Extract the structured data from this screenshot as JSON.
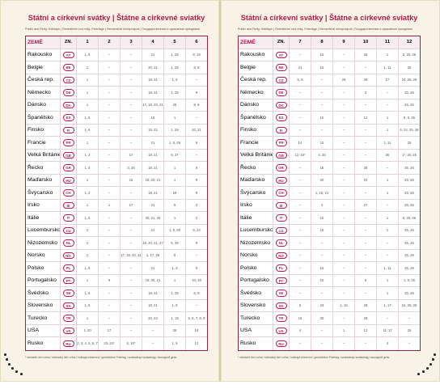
{
  "left_page": {
    "title": "Státní a církevní svátky | Štátne a cirkevné sviatky",
    "subtitle": "Public and Relig. Holidays | Gesetzliche und relig. Feiertage | Nemzetközi ünnepnapok | Государственные и церковные праздники",
    "columns": [
      "ZEMĚ",
      "ZN.",
      "1",
      "2",
      "3",
      "4",
      "5",
      "6"
    ],
    "rows": [
      {
        "country": "Rakousko",
        "code": "AT",
        "cells": [
          "1, 6",
          "–",
          "–",
          "21",
          "1, 29",
          "9, 19"
        ]
      },
      {
        "country": "Belgie",
        "code": "BE",
        "cells": [
          "1",
          "–",
          "–",
          "20, 21",
          "1, 29",
          "8, 9"
        ]
      },
      {
        "country": "Česká rep.",
        "code": "CZ",
        "cells": [
          "1",
          "–",
          "–",
          "18, 21",
          "1, 8",
          "–"
        ]
      },
      {
        "country": "Německo",
        "code": "DE",
        "cells": [
          "1",
          "–",
          "–",
          "18, 21",
          "1, 29",
          "9"
        ]
      },
      {
        "country": "Dánsko",
        "code": "DK",
        "cells": [
          "1",
          "–",
          "–",
          "17, 18, 20, 21",
          "29",
          "8, 9"
        ]
      },
      {
        "country": "Španělsko",
        "code": "ES",
        "cells": [
          "1, 6",
          "–",
          "–",
          "18",
          "1",
          "–"
        ]
      },
      {
        "country": "Finsko",
        "code": "FI",
        "cells": [
          "1, 6",
          "–",
          "–",
          "18, 21",
          "1, 29",
          "20, 21"
        ]
      },
      {
        "country": "Francie",
        "code": "FR",
        "cells": [
          "1",
          "–",
          "–",
          "21",
          "1, 8, 29",
          "9"
        ]
      },
      {
        "country": "Velká Británie",
        "code": "GB",
        "cells": [
          "1, 2",
          "–",
          "17",
          "18, 21",
          "6, 27",
          "–"
        ]
      },
      {
        "country": "Řecko",
        "code": "GR",
        "cells": [
          "1, 6",
          "–",
          "3, 25",
          "18, 21",
          "1",
          "9"
        ]
      },
      {
        "country": "Maďarsko",
        "code": "HU",
        "cells": [
          "1",
          "–",
          "15",
          "18, 20, 21",
          "1",
          "9"
        ]
      },
      {
        "country": "Švýcarsko",
        "code": "CH",
        "cells": [
          "1, 2",
          "–",
          "–",
          "18, 21",
          "29",
          "9"
        ]
      },
      {
        "country": "Irsko",
        "code": "IE",
        "cells": [
          "1",
          "1",
          "17",
          "21",
          "6",
          "3"
        ]
      },
      {
        "country": "Itálie",
        "code": "IT",
        "cells": [
          "1, 6",
          "–",
          "–",
          "20, 21, 25",
          "1",
          "2"
        ]
      },
      {
        "country": "Lucembursko",
        "code": "LU",
        "cells": [
          "1",
          "–",
          "–",
          "21",
          "1, 9, 29",
          "9, 23"
        ]
      },
      {
        "country": "Nizozemsko",
        "code": "NL",
        "cells": [
          "1",
          "–",
          "–",
          "18, 20, 21, 27",
          "5, 29",
          "9"
        ]
      },
      {
        "country": "Norsko",
        "code": "NO",
        "cells": [
          "1",
          "–",
          "17, 18, 20, 21",
          "1, 17, 29",
          "9",
          "–"
        ]
      },
      {
        "country": "Polsko",
        "code": "PL",
        "cells": [
          "1, 6",
          "–",
          "–",
          "21",
          "1, 3",
          "9"
        ]
      },
      {
        "country": "Portugalsko",
        "code": "PT",
        "cells": [
          "1",
          "9",
          "–",
          "18, 25, 21",
          "1",
          "10, 19"
        ]
      },
      {
        "country": "Švédsko",
        "code": "SE",
        "cells": [
          "1, 6",
          "–",
          "–",
          "18, 21",
          "1, 29",
          "6, 9"
        ]
      },
      {
        "country": "Slovensko",
        "code": "SK",
        "cells": [
          "1, 6",
          "–",
          "–",
          "18, 21",
          "1, 8",
          "–"
        ]
      },
      {
        "country": "Turecko",
        "code": "TR",
        "cells": [
          "1",
          "–",
          "–",
          "20, 23",
          "1, 19",
          "5, 6, 7, 8, 9"
        ]
      },
      {
        "country": "USA",
        "code": "US",
        "cells": [
          "1, 20",
          "17",
          "–",
          "–",
          "28",
          "19"
        ]
      },
      {
        "country": "Rusko",
        "code": "RU",
        "cells": [
          "1, 2, 3, 4, 5, 6, 7, 8",
          "23, 24*",
          "8, 10*",
          "–",
          "1, 9",
          "12"
        ]
      }
    ],
    "footnote": "* náhradní den volna / náhradný deň voľna / holidays observed / gesetzlicher Feiertag / szabadnapi szabadság / выходной день"
  },
  "right_page": {
    "title": "Státní a církevní svátky | Štátne a cirkevné sviatky",
    "subtitle": "Public and Relig. Holidays | Gesetzliche und relig. Feiertage | Nemzetközi ünnepnapok | Государственные и церковные праздники",
    "columns": [
      "ZEMĚ",
      "ZN.",
      "7",
      "8",
      "9",
      "10",
      "11",
      "12"
    ],
    "rows": [
      {
        "country": "Rakousko",
        "code": "AT",
        "cells": [
          "–",
          "15",
          "–",
          "26",
          "1",
          "8, 25, 26"
        ]
      },
      {
        "country": "Belgie",
        "code": "BE",
        "cells": [
          "21",
          "15",
          "–",
          "–",
          "1, 11",
          "25"
        ]
      },
      {
        "country": "Česká rep.",
        "code": "CZ",
        "cells": [
          "5, 6",
          "–",
          "28",
          "28",
          "17",
          "24, 25, 26"
        ]
      },
      {
        "country": "Německo",
        "code": "DE",
        "cells": [
          "–",
          "–",
          "–",
          "3",
          "–",
          "25, 26"
        ]
      },
      {
        "country": "Dánsko",
        "code": "DK",
        "cells": [
          "–",
          "–",
          "–",
          "–",
          "–",
          "25, 26"
        ]
      },
      {
        "country": "Španělsko",
        "code": "ES",
        "cells": [
          "–",
          "15",
          "–",
          "12",
          "1",
          "6, 8, 25"
        ]
      },
      {
        "country": "Finsko",
        "code": "FI",
        "cells": [
          "–",
          "–",
          "–",
          "–",
          "1",
          "6, 24, 25, 26"
        ]
      },
      {
        "country": "Francie",
        "code": "FR",
        "cells": [
          "14",
          "15",
          "–",
          "–",
          "1, 11",
          "25"
        ]
      },
      {
        "country": "Velká Británie",
        "code": "GB",
        "cells": [
          "12, 16*",
          "4, 25",
          "–",
          "–",
          "30",
          "1*, 25, 26"
        ]
      },
      {
        "country": "Řecko",
        "code": "GR",
        "cells": [
          "–",
          "15",
          "–",
          "28",
          "–",
          "25, 26"
        ]
      },
      {
        "country": "Maďarsko",
        "code": "HU",
        "cells": [
          "–",
          "20",
          "–",
          "23",
          "1",
          "25, 26"
        ]
      },
      {
        "country": "Švýcarsko",
        "code": "CH",
        "cells": [
          "–",
          "1, 15, 21",
          "–",
          "–",
          "1",
          "25, 26"
        ]
      },
      {
        "country": "Irsko",
        "code": "IE",
        "cells": [
          "–",
          "4",
          "–",
          "27",
          "–",
          "25, 26"
        ]
      },
      {
        "country": "Itálie",
        "code": "IT",
        "cells": [
          "–",
          "15",
          "–",
          "–",
          "1",
          "8, 25, 26"
        ]
      },
      {
        "country": "Lucembursko",
        "code": "LU",
        "cells": [
          "–",
          "15",
          "–",
          "–",
          "1",
          "25, 26"
        ]
      },
      {
        "country": "Nizozemsko",
        "code": "NL",
        "cells": [
          "–",
          "–",
          "–",
          "–",
          "–",
          "25, 26"
        ]
      },
      {
        "country": "Norsko",
        "code": "NO",
        "cells": [
          "–",
          "–",
          "–",
          "–",
          "–",
          "25, 26"
        ]
      },
      {
        "country": "Polsko",
        "code": "PL",
        "cells": [
          "–",
          "15",
          "–",
          "–",
          "1, 11",
          "25, 26"
        ]
      },
      {
        "country": "Portugalsko",
        "code": "PT",
        "cells": [
          "–",
          "15",
          "–",
          "5",
          "1",
          "1, 8, 25"
        ]
      },
      {
        "country": "Švédsko",
        "code": "SE",
        "cells": [
          "–",
          "–",
          "–",
          "–",
          "1",
          "25, 26"
        ]
      },
      {
        "country": "Slovensko",
        "code": "SK",
        "cells": [
          "5",
          "29",
          "1, 15",
          "28",
          "1, 17",
          "24, 25, 26"
        ]
      },
      {
        "country": "Turecko",
        "code": "TR",
        "cells": [
          "15",
          "30",
          "–",
          "29",
          "–",
          "–"
        ]
      },
      {
        "country": "USA",
        "code": "US",
        "cells": [
          "4",
          "–",
          "1",
          "13",
          "11, 17",
          "25"
        ]
      },
      {
        "country": "Rusko",
        "code": "RU",
        "cells": [
          "–",
          "–",
          "–",
          "–",
          "4",
          "–"
        ]
      }
    ],
    "footnote": "* náhradní den volna / náhradný deň voľna / holidays observed / gesetzlicher Feiertag / szabadnapi szabadság / выходной день"
  },
  "colors": {
    "accent": "#b8174a",
    "paper": "#f8f3e6",
    "table_border": "#8b2846"
  }
}
